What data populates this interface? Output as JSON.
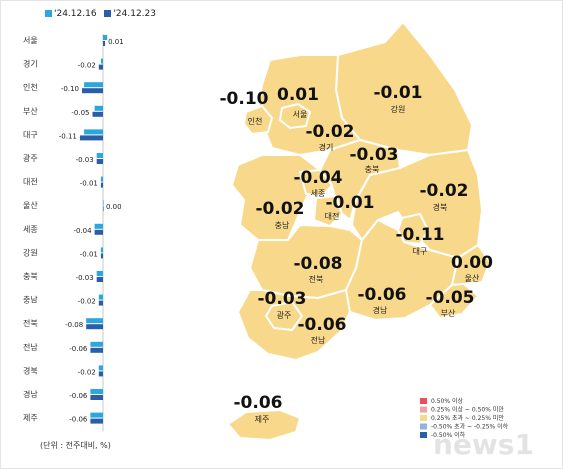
{
  "chart_data": {
    "type": "bar",
    "orientation": "horizontal",
    "series": [
      {
        "name": "'24.12.16",
        "color": "#29a8de",
        "values": [
          0.02,
          -0.01,
          -0.09,
          -0.04,
          -0.09,
          -0.03,
          -0.01,
          0.0,
          -0.04,
          -0.01,
          -0.03,
          -0.02,
          -0.08,
          -0.06,
          -0.02,
          -0.06,
          -0.06
        ]
      },
      {
        "name": "'24.12.23",
        "color": "#2a5ea8",
        "values": [
          0.01,
          -0.02,
          -0.1,
          -0.05,
          -0.11,
          -0.03,
          -0.01,
          0.0,
          -0.04,
          -0.01,
          -0.03,
          -0.02,
          -0.08,
          -0.06,
          -0.02,
          -0.06,
          -0.06
        ]
      }
    ],
    "categories": [
      "서울",
      "경기",
      "인천",
      "부산",
      "대구",
      "광주",
      "대전",
      "울산",
      "세종",
      "강원",
      "충북",
      "충남",
      "전북",
      "전남",
      "경북",
      "경남",
      "제주"
    ],
    "value_labels": [
      "0.01",
      "-0.02",
      "-0.10",
      "-0.05",
      "-0.11",
      "-0.03",
      "-0.01",
      "0.00",
      "-0.04",
      "-0.01",
      "-0.03",
      "-0.02",
      "-0.08",
      "-0.06",
      "-0.02",
      "-0.06",
      "-0.06"
    ],
    "unit_note": "(단위 : 전주대비, %)",
    "map_labels": [
      {
        "value": "-0.10",
        "name": "인천"
      },
      {
        "value": "0.01",
        "name": "서울"
      },
      {
        "value": "-0.01",
        "name": "강원"
      },
      {
        "value": "-0.02",
        "name": "경기"
      },
      {
        "value": "-0.03",
        "name": "충북"
      },
      {
        "value": "-0.04",
        "name": "세종"
      },
      {
        "value": "-0.01",
        "name": "대전"
      },
      {
        "value": "-0.02",
        "name": "충남"
      },
      {
        "value": "-0.02",
        "name": "경북"
      },
      {
        "value": "-0.11",
        "name": "대구"
      },
      {
        "value": "0.00",
        "name": "울산"
      },
      {
        "value": "-0.08",
        "name": "전북"
      },
      {
        "value": "-0.03",
        "name": "광주"
      },
      {
        "value": "-0.06",
        "name": "경남"
      },
      {
        "value": "-0.05",
        "name": "부산"
      },
      {
        "value": "-0.06",
        "name": "전남"
      },
      {
        "value": "-0.06",
        "name": "제주"
      }
    ],
    "map_legend": [
      {
        "label": "0.50% 이상",
        "color": "#e8505b"
      },
      {
        "label": "0.25% 이상 ~ 0.50% 미만",
        "color": "#f2a0a5"
      },
      {
        "label": "0.25% 초과 ~ 0.25% 미만",
        "color": "#f7d98a"
      },
      {
        "label": "-0.50% 초과 ~ -0.25% 이하",
        "color": "#8fb4e0"
      },
      {
        "label": "-0.50% 이하",
        "color": "#2a5ea8"
      }
    ],
    "colors": {
      "region_fill": "#f8d98b",
      "region_stroke": "#ffffff"
    }
  }
}
